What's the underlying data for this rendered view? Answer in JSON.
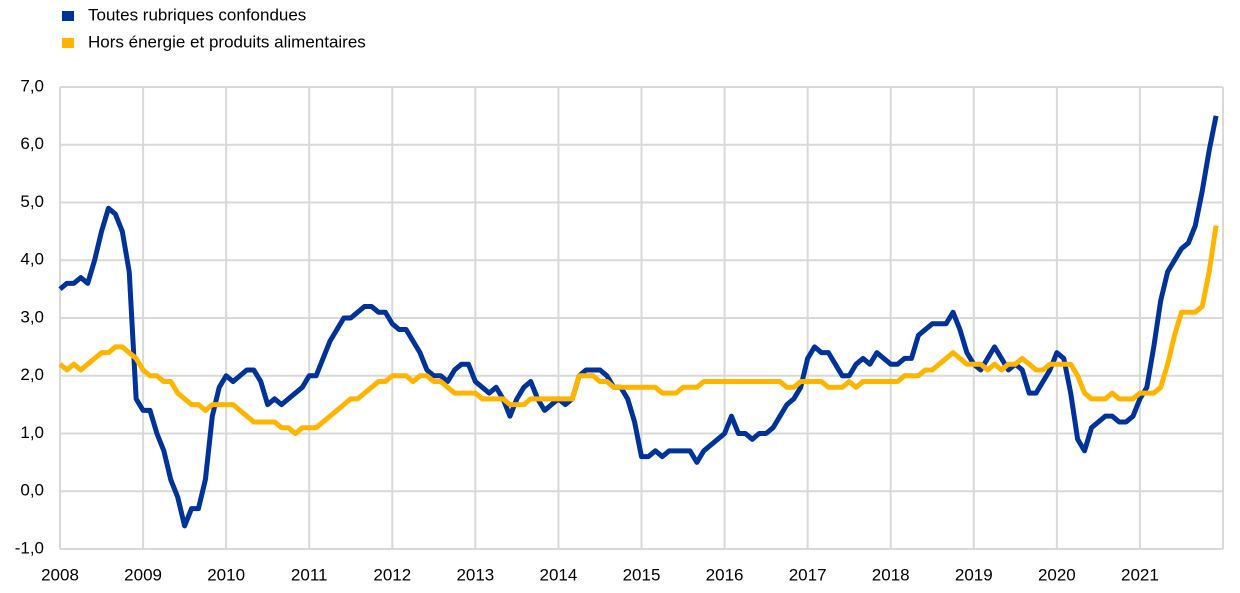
{
  "chart_data": {
    "type": "line",
    "categories": [
      "2008",
      null,
      null,
      null,
      null,
      null,
      null,
      null,
      null,
      null,
      null,
      null,
      "2009",
      null,
      null,
      null,
      null,
      null,
      null,
      null,
      null,
      null,
      null,
      null,
      "2010",
      null,
      null,
      null,
      null,
      null,
      null,
      null,
      null,
      null,
      null,
      null,
      "2011",
      null,
      null,
      null,
      null,
      null,
      null,
      null,
      null,
      null,
      null,
      null,
      "2012",
      null,
      null,
      null,
      null,
      null,
      null,
      null,
      null,
      null,
      null,
      null,
      "2013",
      null,
      null,
      null,
      null,
      null,
      null,
      null,
      null,
      null,
      null,
      null,
      "2014",
      null,
      null,
      null,
      null,
      null,
      null,
      null,
      null,
      null,
      null,
      null,
      "2015",
      null,
      null,
      null,
      null,
      null,
      null,
      null,
      null,
      null,
      null,
      null,
      "2016",
      null,
      null,
      null,
      null,
      null,
      null,
      null,
      null,
      null,
      null,
      null,
      "2017",
      null,
      null,
      null,
      null,
      null,
      null,
      null,
      null,
      null,
      null,
      null,
      "2018",
      null,
      null,
      null,
      null,
      null,
      null,
      null,
      null,
      null,
      null,
      null,
      "2019",
      null,
      null,
      null,
      null,
      null,
      null,
      null,
      null,
      null,
      null,
      null,
      "2020",
      null,
      null,
      null,
      null,
      null,
      null,
      null,
      null,
      null,
      null,
      null,
      "2021",
      null,
      null,
      null,
      null,
      null,
      null,
      null,
      null,
      null,
      null,
      null
    ],
    "series": [
      {
        "name": "Toutes rubriques confondues",
        "color": "#003399",
        "values": [
          3.5,
          3.6,
          3.6,
          3.7,
          3.6,
          4.0,
          4.5,
          4.9,
          4.8,
          4.5,
          3.8,
          1.6,
          1.4,
          1.4,
          1.0,
          0.7,
          0.2,
          -0.1,
          -0.6,
          -0.3,
          -0.3,
          0.2,
          1.3,
          1.8,
          2.0,
          1.9,
          2.0,
          2.1,
          2.1,
          1.9,
          1.5,
          1.6,
          1.5,
          1.6,
          1.7,
          1.8,
          2.0,
          2.0,
          2.3,
          2.6,
          2.8,
          3.0,
          3.0,
          3.1,
          3.2,
          3.2,
          3.1,
          3.1,
          2.9,
          2.8,
          2.8,
          2.6,
          2.4,
          2.1,
          2.0,
          2.0,
          1.9,
          2.1,
          2.2,
          2.2,
          1.9,
          1.8,
          1.7,
          1.8,
          1.6,
          1.3,
          1.6,
          1.8,
          1.9,
          1.6,
          1.4,
          1.5,
          1.6,
          1.5,
          1.6,
          2.0,
          2.1,
          2.1,
          2.1,
          2.0,
          1.8,
          1.8,
          1.6,
          1.2,
          0.6,
          0.6,
          0.7,
          0.6,
          0.7,
          0.7,
          0.7,
          0.7,
          0.5,
          0.7,
          0.8,
          0.9,
          1.0,
          1.3,
          1.0,
          1.0,
          0.9,
          1.0,
          1.0,
          1.1,
          1.3,
          1.5,
          1.6,
          1.8,
          2.3,
          2.5,
          2.4,
          2.4,
          2.2,
          2.0,
          2.0,
          2.2,
          2.3,
          2.2,
          2.4,
          2.3,
          2.2,
          2.2,
          2.3,
          2.3,
          2.7,
          2.8,
          2.9,
          2.9,
          2.9,
          3.1,
          2.8,
          2.4,
          2.2,
          2.1,
          2.3,
          2.5,
          2.3,
          2.1,
          2.2,
          2.1,
          1.7,
          1.7,
          1.9,
          2.1,
          2.4,
          2.3,
          1.7,
          0.9,
          0.7,
          1.1,
          1.2,
          1.3,
          1.3,
          1.2,
          1.2,
          1.3,
          1.6,
          1.8,
          2.5,
          3.3,
          3.8,
          4.0,
          4.2,
          4.3,
          4.6,
          5.2,
          5.9,
          6.5
        ]
      },
      {
        "name": "Hors énergie et produits alimentaires",
        "color": "#ffb400",
        "values": [
          2.2,
          2.1,
          2.2,
          2.1,
          2.2,
          2.3,
          2.4,
          2.4,
          2.5,
          2.5,
          2.4,
          2.3,
          2.1,
          2.0,
          2.0,
          1.9,
          1.9,
          1.7,
          1.6,
          1.5,
          1.5,
          1.4,
          1.5,
          1.5,
          1.5,
          1.5,
          1.4,
          1.3,
          1.2,
          1.2,
          1.2,
          1.2,
          1.1,
          1.1,
          1.0,
          1.1,
          1.1,
          1.1,
          1.2,
          1.3,
          1.4,
          1.5,
          1.6,
          1.6,
          1.7,
          1.8,
          1.9,
          1.9,
          2.0,
          2.0,
          2.0,
          1.9,
          2.0,
          2.0,
          1.9,
          1.9,
          1.8,
          1.7,
          1.7,
          1.7,
          1.7,
          1.6,
          1.6,
          1.6,
          1.6,
          1.5,
          1.5,
          1.5,
          1.6,
          1.6,
          1.6,
          1.6,
          1.6,
          1.6,
          1.6,
          2.0,
          2.0,
          2.0,
          1.9,
          1.9,
          1.8,
          1.8,
          1.8,
          1.8,
          1.8,
          1.8,
          1.8,
          1.7,
          1.7,
          1.7,
          1.8,
          1.8,
          1.8,
          1.9,
          1.9,
          1.9,
          1.9,
          1.9,
          1.9,
          1.9,
          1.9,
          1.9,
          1.9,
          1.9,
          1.9,
          1.8,
          1.8,
          1.9,
          1.9,
          1.9,
          1.9,
          1.8,
          1.8,
          1.8,
          1.9,
          1.8,
          1.9,
          1.9,
          1.9,
          1.9,
          1.9,
          1.9,
          2.0,
          2.0,
          2.0,
          2.1,
          2.1,
          2.2,
          2.3,
          2.4,
          2.3,
          2.2,
          2.2,
          2.2,
          2.1,
          2.2,
          2.1,
          2.2,
          2.2,
          2.3,
          2.2,
          2.1,
          2.1,
          2.2,
          2.2,
          2.2,
          2.2,
          2.0,
          1.7,
          1.6,
          1.6,
          1.6,
          1.7,
          1.6,
          1.6,
          1.6,
          1.7,
          1.7,
          1.7,
          1.8,
          2.2,
          2.7,
          3.1,
          3.1,
          3.1,
          3.2,
          3.8,
          4.6
        ]
      }
    ],
    "ylim": [
      -1,
      7
    ],
    "yticks": [
      {
        "value": -1,
        "label": "-1,0"
      },
      {
        "value": 0,
        "label": "0,0"
      },
      {
        "value": 1,
        "label": "1,0"
      },
      {
        "value": 2,
        "label": "2,0"
      },
      {
        "value": 3,
        "label": "3,0"
      },
      {
        "value": 4,
        "label": "4,0"
      },
      {
        "value": 5,
        "label": "5,0"
      },
      {
        "value": 6,
        "label": "6,0"
      },
      {
        "value": 7,
        "label": "7,0"
      }
    ],
    "grid": true,
    "legend": "top-left"
  }
}
